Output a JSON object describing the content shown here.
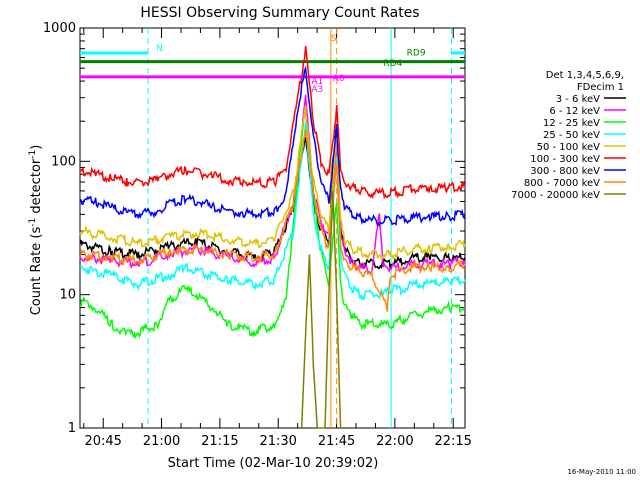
{
  "chart_data": {
    "type": "line",
    "title": "HESSI Observing Summary Count Rates",
    "xlabel": "Start Time (02-Mar-10 20:39:02)",
    "ylabel": "Count Rate (s⁻¹ detector⁻¹)",
    "ylabel_main": "Count Rate (s",
    "ylabel_sup1": "-1",
    "ylabel_mid": " detector",
    "ylabel_sup2": "-1",
    "ylabel_end": ")",
    "yscale": "log",
    "ylim": [
      1,
      1000
    ],
    "xlim_minutes_after_start": [
      0,
      99
    ],
    "x_ticks": [
      {
        "label": "20:45",
        "min": 5.97
      },
      {
        "label": "21:00",
        "min": 20.97
      },
      {
        "label": "21:15",
        "min": 35.97
      },
      {
        "label": "21:30",
        "min": 50.97
      },
      {
        "label": "21:45",
        "min": 65.97
      },
      {
        "label": "22:00",
        "min": 80.97
      },
      {
        "label": "22:15",
        "min": 95.97
      }
    ],
    "y_ticks": [
      {
        "label": "1",
        "v": 1
      },
      {
        "label": "10",
        "v": 10
      },
      {
        "label": "100",
        "v": 100
      },
      {
        "label": "1000",
        "v": 1000
      }
    ],
    "legend": {
      "position": "right",
      "header": [
        "Det 1,3,4,5,6,9,",
        "FDecim 1"
      ],
      "series_labels": [
        "3 - 6 keV",
        "6 - 12 keV",
        "12 - 25 keV",
        "25 - 50 keV",
        "50 - 100 keV",
        "100 - 300 keV",
        "300 - 800 keV",
        "800 - 7000 keV",
        "7000 - 20000 keV"
      ]
    },
    "series": [
      {
        "name": "3 - 6 keV",
        "color": "#000000",
        "points": [
          [
            0,
            24
          ],
          [
            8,
            21
          ],
          [
            15,
            20
          ],
          [
            23,
            23
          ],
          [
            30,
            25
          ],
          [
            38,
            21
          ],
          [
            45,
            19
          ],
          [
            50,
            21
          ],
          [
            55,
            45
          ],
          [
            58,
            160
          ],
          [
            60,
            50
          ],
          [
            62,
            30
          ],
          [
            64,
            25
          ],
          [
            66,
            200
          ],
          [
            67,
            30
          ],
          [
            68,
            22
          ],
          [
            70,
            18
          ],
          [
            72,
            17
          ],
          [
            75,
            17
          ],
          [
            78,
            17
          ],
          [
            80,
            17
          ],
          [
            83,
            18
          ],
          [
            86,
            19
          ],
          [
            90,
            19
          ],
          [
            95,
            19
          ],
          [
            99,
            19
          ]
        ]
      },
      {
        "name": "6 - 12 keV",
        "color": "#ff00ff",
        "points": [
          [
            0,
            19
          ],
          [
            8,
            18
          ],
          [
            15,
            17
          ],
          [
            23,
            20
          ],
          [
            30,
            22
          ],
          [
            38,
            19
          ],
          [
            45,
            17
          ],
          [
            50,
            19
          ],
          [
            55,
            50
          ],
          [
            58,
            300
          ],
          [
            60,
            60
          ],
          [
            62,
            35
          ],
          [
            64,
            28
          ],
          [
            66,
            130
          ],
          [
            67,
            30
          ],
          [
            68,
            22
          ],
          [
            70,
            17
          ],
          [
            72,
            16
          ],
          [
            75,
            15
          ],
          [
            77,
            40
          ],
          [
            78,
            16
          ],
          [
            80,
            16
          ],
          [
            83,
            16
          ],
          [
            86,
            17
          ],
          [
            90,
            17
          ],
          [
            95,
            17
          ],
          [
            99,
            18
          ]
        ]
      },
      {
        "name": "12 - 25 keV",
        "color": "#00ff00",
        "points": [
          [
            0,
            9
          ],
          [
            4,
            8
          ],
          [
            8,
            6
          ],
          [
            12,
            5
          ],
          [
            15,
            5.2
          ],
          [
            20,
            6
          ],
          [
            23,
            9
          ],
          [
            27,
            11
          ],
          [
            30,
            10
          ],
          [
            34,
            8
          ],
          [
            38,
            6
          ],
          [
            42,
            5.5
          ],
          [
            45,
            5.3
          ],
          [
            50,
            6
          ],
          [
            53,
            9
          ],
          [
            56,
            80
          ],
          [
            58,
            250
          ],
          [
            60,
            60
          ],
          [
            62,
            20
          ],
          [
            64,
            12
          ],
          [
            66,
            50
          ],
          [
            67,
            12
          ],
          [
            68,
            8
          ],
          [
            70,
            7
          ],
          [
            72,
            6
          ],
          [
            75,
            6
          ],
          [
            78,
            6
          ],
          [
            80,
            6
          ],
          [
            83,
            6.5
          ],
          [
            86,
            7
          ],
          [
            90,
            7.5
          ],
          [
            95,
            8
          ],
          [
            99,
            8
          ]
        ]
      },
      {
        "name": "25 - 50 keV",
        "color": "#00ffff",
        "points": [
          [
            0,
            16
          ],
          [
            8,
            14
          ],
          [
            15,
            12
          ],
          [
            23,
            14
          ],
          [
            27,
            16
          ],
          [
            30,
            15
          ],
          [
            38,
            13
          ],
          [
            45,
            12
          ],
          [
            50,
            13
          ],
          [
            55,
            30
          ],
          [
            58,
            200
          ],
          [
            60,
            40
          ],
          [
            62,
            22
          ],
          [
            64,
            16
          ],
          [
            66,
            110
          ],
          [
            67,
            20
          ],
          [
            68,
            14
          ],
          [
            70,
            11
          ],
          [
            72,
            10
          ],
          [
            75,
            10
          ],
          [
            78,
            10
          ],
          [
            80,
            11
          ],
          [
            83,
            11
          ],
          [
            86,
            12
          ],
          [
            90,
            12
          ],
          [
            95,
            12.5
          ],
          [
            99,
            13
          ]
        ]
      },
      {
        "name": "50 - 100 keV",
        "color": "#e0c000",
        "points": [
          [
            0,
            30
          ],
          [
            8,
            27
          ],
          [
            15,
            24
          ],
          [
            23,
            27
          ],
          [
            30,
            29
          ],
          [
            38,
            26
          ],
          [
            45,
            24
          ],
          [
            50,
            26
          ],
          [
            55,
            60
          ],
          [
            58,
            250
          ],
          [
            60,
            70
          ],
          [
            62,
            40
          ],
          [
            64,
            30
          ],
          [
            66,
            150
          ],
          [
            67,
            35
          ],
          [
            68,
            26
          ],
          [
            70,
            22
          ],
          [
            72,
            21
          ],
          [
            75,
            20
          ],
          [
            78,
            20
          ],
          [
            80,
            20
          ],
          [
            83,
            21
          ],
          [
            86,
            22
          ],
          [
            90,
            22
          ],
          [
            95,
            23
          ],
          [
            99,
            24
          ]
        ]
      },
      {
        "name": "100 - 300 keV",
        "color": "#ff0000",
        "points": [
          [
            0,
            85
          ],
          [
            4,
            80
          ],
          [
            8,
            75
          ],
          [
            12,
            70
          ],
          [
            15,
            68
          ],
          [
            20,
            72
          ],
          [
            23,
            80
          ],
          [
            27,
            85
          ],
          [
            30,
            82
          ],
          [
            34,
            78
          ],
          [
            38,
            72
          ],
          [
            42,
            70
          ],
          [
            45,
            68
          ],
          [
            50,
            70
          ],
          [
            53,
            90
          ],
          [
            56,
            300
          ],
          [
            58,
            700
          ],
          [
            60,
            200
          ],
          [
            62,
            100
          ],
          [
            64,
            80
          ],
          [
            66,
            250
          ],
          [
            67,
            90
          ],
          [
            68,
            70
          ],
          [
            70,
            65
          ],
          [
            72,
            60
          ],
          [
            75,
            58
          ],
          [
            78,
            58
          ],
          [
            80,
            58
          ],
          [
            83,
            60
          ],
          [
            86,
            62
          ],
          [
            90,
            63
          ],
          [
            95,
            64
          ],
          [
            99,
            65
          ]
        ]
      },
      {
        "name": "300 - 800 keV",
        "color": "#0000ff",
        "points": [
          [
            0,
            52
          ],
          [
            4,
            50
          ],
          [
            8,
            45
          ],
          [
            12,
            42
          ],
          [
            15,
            40
          ],
          [
            20,
            42
          ],
          [
            23,
            48
          ],
          [
            27,
            52
          ],
          [
            30,
            50
          ],
          [
            34,
            46
          ],
          [
            38,
            42
          ],
          [
            42,
            41
          ],
          [
            45,
            40
          ],
          [
            50,
            42
          ],
          [
            53,
            55
          ],
          [
            56,
            250
          ],
          [
            58,
            500
          ],
          [
            60,
            150
          ],
          [
            62,
            70
          ],
          [
            64,
            50
          ],
          [
            66,
            180
          ],
          [
            67,
            60
          ],
          [
            68,
            45
          ],
          [
            70,
            40
          ],
          [
            72,
            38
          ],
          [
            75,
            36
          ],
          [
            78,
            36
          ],
          [
            80,
            36
          ],
          [
            83,
            37
          ],
          [
            86,
            38
          ],
          [
            90,
            38
          ],
          [
            95,
            39
          ],
          [
            99,
            40
          ]
        ]
      },
      {
        "name": "800 - 7000 keV",
        "color": "#ff8800",
        "points": [
          [
            0,
            20
          ],
          [
            8,
            19
          ],
          [
            15,
            18
          ],
          [
            23,
            21
          ],
          [
            30,
            22
          ],
          [
            38,
            20
          ],
          [
            45,
            19
          ],
          [
            50,
            20
          ],
          [
            55,
            50
          ],
          [
            58,
            180
          ],
          [
            60,
            60
          ],
          [
            62,
            30
          ],
          [
            64,
            22
          ],
          [
            66,
            100
          ],
          [
            67,
            25
          ],
          [
            68,
            18
          ],
          [
            70,
            16
          ],
          [
            72,
            15
          ],
          [
            75,
            14
          ],
          [
            78,
            9
          ],
          [
            79,
            8
          ],
          [
            80,
            14
          ],
          [
            83,
            15
          ],
          [
            86,
            16
          ],
          [
            90,
            16
          ],
          [
            95,
            16
          ],
          [
            99,
            17
          ]
        ]
      },
      {
        "name": "7000 - 20000 keV",
        "color": "#808000",
        "points": [
          [
            57,
            1
          ],
          [
            58,
            5
          ],
          [
            59,
            20
          ],
          [
            60,
            3
          ],
          [
            61,
            1
          ],
          [
            63,
            1
          ],
          [
            64,
            10
          ],
          [
            65,
            60
          ],
          [
            66,
            10
          ],
          [
            67,
            1
          ]
        ]
      }
    ],
    "state_bars": [
      {
        "label": "N",
        "color": "#00ffff",
        "level": 650,
        "segments": [
          [
            0,
            17.5
          ],
          [
            95.5,
            99
          ]
        ]
      },
      {
        "label": "",
        "color": "#008000",
        "level": 560,
        "segments": [
          [
            0,
            99
          ]
        ]
      },
      {
        "label": "",
        "color": "#ff00ff",
        "level": 430,
        "segments": [
          [
            0,
            99
          ]
        ]
      }
    ],
    "annotations": [
      {
        "text": "S",
        "min": 64.5,
        "level": 800,
        "color": "#ff8800"
      },
      {
        "text": "RD9",
        "min": 84,
        "level": 620,
        "color": "#008000"
      },
      {
        "text": "RD4",
        "min": 78,
        "level": 520,
        "color": "#008000"
      },
      {
        "text": "A1",
        "min": 59.5,
        "level": 380,
        "color": "#ff00ff"
      },
      {
        "text": "A0",
        "min": 65,
        "level": 400,
        "color": "#ff00ff"
      },
      {
        "text": "A3",
        "min": 59.5,
        "level": 330,
        "color": "#ff00ff"
      }
    ],
    "vlines": [
      {
        "min": 17.5,
        "color": "#00ffff",
        "style": "dashed"
      },
      {
        "min": 80,
        "color": "#00ffff",
        "style": "solid"
      },
      {
        "min": 95.5,
        "color": "#00ffff",
        "style": "dashed"
      },
      {
        "min": 64.5,
        "color": "#ff8800",
        "style": "solid"
      },
      {
        "min": 66,
        "color": "#ff8800",
        "style": "dashed"
      }
    ],
    "timestamp": "16-May-2010 11:00"
  }
}
